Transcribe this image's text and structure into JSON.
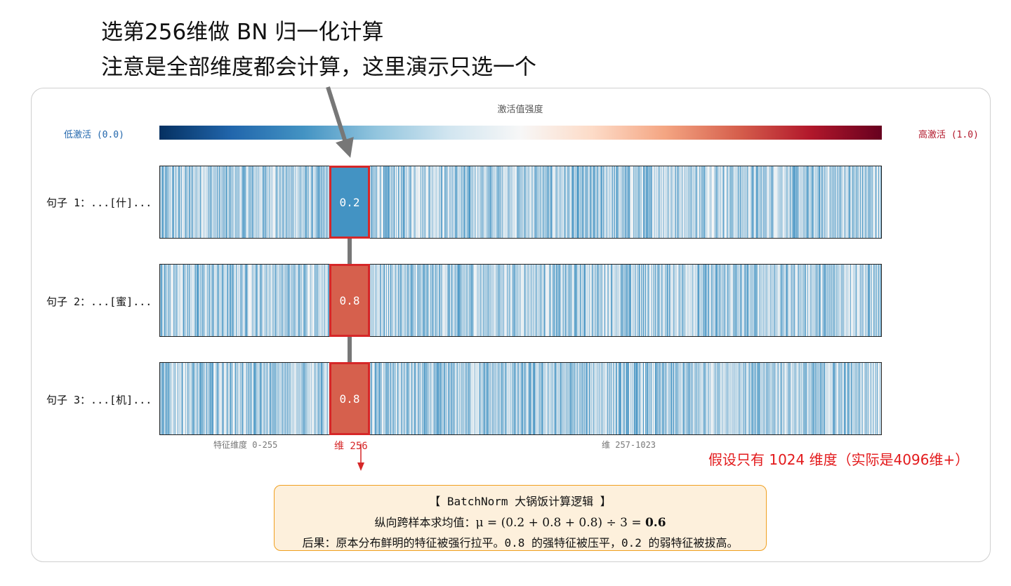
{
  "header": {
    "line1": "选第256维做 BN 归一化计算",
    "line2": "注意是全部维度都会计算，这里演示只选一个"
  },
  "colorbar": {
    "title": "激活值强度",
    "low_label": "低激活 (0.0)",
    "high_label": "高激活 (1.0)",
    "colors": [
      "#053061",
      "#2166ac",
      "#4393c3",
      "#92c5de",
      "#d1e5f0",
      "#f7f7f7",
      "#fddbc7",
      "#f4a582",
      "#d6604d",
      "#b2182b",
      "#67001f"
    ],
    "range": [
      0.0,
      1.0
    ]
  },
  "rows": [
    {
      "label": "句子 1：...[什]...",
      "highlight_value": "0.2",
      "highlight_color": "#4393c3"
    },
    {
      "label": "句子 2：...[蜜]...",
      "highlight_value": "0.8",
      "highlight_color": "#d6604d"
    },
    {
      "label": "句子 3：...[机]...",
      "highlight_value": "0.8",
      "highlight_color": "#d6604d"
    }
  ],
  "axis": {
    "left_label": "特征维度 0-255",
    "selected_label": "维 256",
    "right_label": "维 257-1023"
  },
  "note": "假设只有 1024 维度（实际是4096维+）",
  "info_box": {
    "title": "【 BatchNorm 大锅饭计算逻辑 】",
    "mean_prefix": "纵向跨样本求均值：",
    "mean_formula": "μ = (0.2 + 0.8 + 0.8) ÷ 3 = ",
    "mean_result": "0.6",
    "consequence": "后果：原本分布鲜明的特征被强行拉平。0.8 的强特征被压平，0.2 的弱特征被拔高。"
  },
  "colors": {
    "highlight_border": "#d62728",
    "connector": "#777777",
    "arrow": "#777777",
    "note": "#e31a1c",
    "info_bg": "#fdf0dc",
    "info_border": "#f0a020"
  },
  "dimensions": {
    "total": 1024,
    "selected_index": 256
  }
}
